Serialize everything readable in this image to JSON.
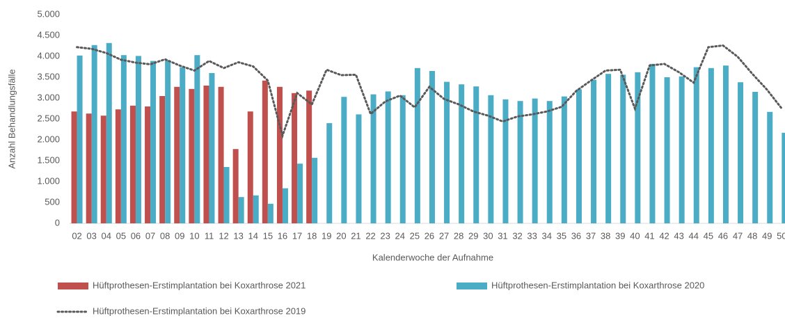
{
  "chart_data": {
    "type": "bar",
    "y_axis_label": "Anzahl Behandlungsfälle",
    "x_axis_label": "Kalenderwoche der Aufnahme",
    "categories": [
      "02",
      "03",
      "04",
      "05",
      "06",
      "07",
      "08",
      "09",
      "10",
      "11",
      "12",
      "13",
      "14",
      "15",
      "16",
      "17",
      "18",
      "19",
      "20",
      "21",
      "22",
      "23",
      "24",
      "25",
      "26",
      "27",
      "28",
      "29",
      "30",
      "31",
      "32",
      "33",
      "34",
      "35",
      "36",
      "37",
      "38",
      "39",
      "40",
      "41",
      "42",
      "43",
      "44",
      "45",
      "46",
      "47",
      "48",
      "49",
      "50"
    ],
    "series": [
      {
        "name": "Hüftprothesen-Erstimplantation bei Koxarthrose 2021",
        "type": "bar",
        "color": "#c0504d",
        "values": [
          2680,
          2630,
          2580,
          2730,
          2820,
          2800,
          3050,
          3270,
          3220,
          3300,
          3270,
          1780,
          2680,
          3420,
          3270,
          3120,
          3180,
          null,
          null,
          null,
          null,
          null,
          null,
          null,
          null,
          null,
          null,
          null,
          null,
          null,
          null,
          null,
          null,
          null,
          null,
          null,
          null,
          null,
          null,
          null,
          null,
          null,
          null,
          null,
          null,
          null,
          null,
          null,
          null
        ]
      },
      {
        "name": "Hüftprothesen-Erstimplantation bei Koxarthrose 2020",
        "type": "bar",
        "color": "#4bacc6",
        "values": [
          4020,
          4270,
          4320,
          4030,
          4010,
          3890,
          3900,
          3740,
          4030,
          3600,
          1350,
          630,
          670,
          470,
          840,
          1430,
          1570,
          2400,
          3030,
          2610,
          3090,
          3160,
          3070,
          3720,
          3650,
          3390,
          3330,
          3280,
          3070,
          2970,
          2930,
          2990,
          2930,
          3040,
          3210,
          3440,
          3580,
          3560,
          3620,
          3820,
          3500,
          3520,
          3740,
          3720,
          3780,
          3380,
          3150,
          2670,
          2170
        ]
      },
      {
        "name": "Hüftprothesen-Erstimplantation bei Koxarthrose 2019",
        "type": "line",
        "color": "#595959",
        "values": [
          4220,
          4180,
          4080,
          3920,
          3850,
          3810,
          3930,
          3780,
          3660,
          3890,
          3720,
          3860,
          3760,
          3420,
          2100,
          3120,
          2850,
          3680,
          3550,
          3560,
          2620,
          2920,
          3060,
          2780,
          3270,
          2980,
          2850,
          2680,
          2580,
          2440,
          2560,
          2610,
          2680,
          2790,
          3170,
          3420,
          3660,
          3680,
          2750,
          3780,
          3820,
          3620,
          3370,
          4220,
          4260,
          3990,
          3580,
          3200,
          2750
        ]
      }
    ],
    "ylim": [
      0,
      5000
    ],
    "yticks": [
      0,
      {
        "value": 500,
        "label": "500"
      },
      {
        "value": 1000,
        "label": "1.000"
      },
      {
        "value": 1500,
        "label": "1.500"
      },
      {
        "value": 2000,
        "label": "2.000"
      },
      {
        "value": 2500,
        "label": "2.500"
      },
      {
        "value": 3000,
        "label": "3.000"
      },
      {
        "value": 3500,
        "label": "3.500"
      },
      {
        "value": 4000,
        "label": "4.000"
      },
      {
        "value": 4500,
        "label": "4.500"
      },
      {
        "value": 5000,
        "label": "5.000"
      }
    ],
    "grid": false,
    "legend": "bottom"
  }
}
